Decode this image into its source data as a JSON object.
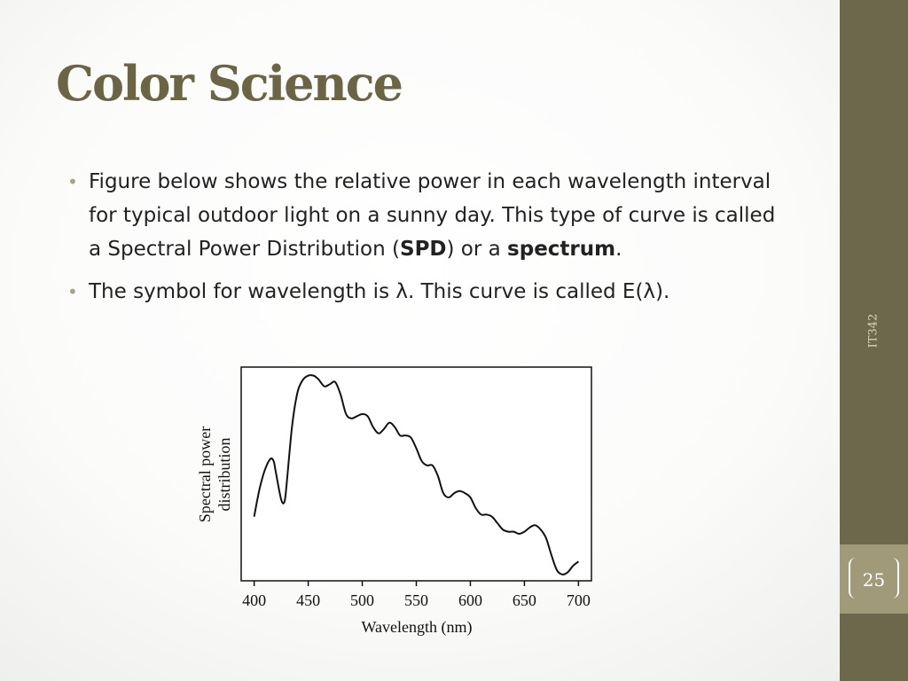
{
  "slide": {
    "title": "Color Science",
    "bullets": [
      {
        "t1": "Figure below shows the relative power in each wavelength interval for typical outdoor light on a sunny day. This type of curve is called a Spectral Power Distribution (",
        "b1": "SPD",
        "t2": ") or a ",
        "b2": "spectrum",
        "t3": "."
      },
      {
        "t1": "The symbol for wavelength is λ. This curve is called E(λ)."
      }
    ],
    "course": "IT342",
    "page_number": "25",
    "colors": {
      "title": "#6b6546",
      "sidebar": "#6d674c",
      "page_box": "#a09a79",
      "bullet": "#a8a386"
    }
  },
  "chart_data": {
    "type": "line",
    "xlabel": "Wavelength (nm)",
    "ylabel": "Spectral power distribution",
    "ylabel_lines": [
      "Spectral power",
      "distribution"
    ],
    "xlim": [
      388,
      712
    ],
    "ylim": [
      0,
      1.0
    ],
    "x_ticks": [
      400,
      450,
      500,
      550,
      600,
      650,
      700
    ],
    "grid": false,
    "series": [
      {
        "x": [
          400,
          405,
          410,
          415,
          418,
          420,
          425,
          428,
          430,
          435,
          440,
          445,
          450,
          455,
          458,
          460,
          465,
          470,
          475,
          480,
          485,
          490,
          495,
          500,
          505,
          510,
          515,
          520,
          525,
          530,
          535,
          540,
          545,
          550,
          555,
          560,
          565,
          570,
          575,
          580,
          585,
          590,
          595,
          600,
          605,
          610,
          615,
          620,
          625,
          630,
          635,
          640,
          645,
          650,
          655,
          660,
          665,
          670,
          675,
          680,
          685,
          690,
          695,
          700
        ],
        "y": [
          0.3,
          0.43,
          0.52,
          0.57,
          0.56,
          0.51,
          0.38,
          0.37,
          0.45,
          0.72,
          0.88,
          0.94,
          0.96,
          0.96,
          0.95,
          0.94,
          0.91,
          0.92,
          0.93,
          0.87,
          0.78,
          0.76,
          0.77,
          0.78,
          0.77,
          0.72,
          0.69,
          0.71,
          0.74,
          0.72,
          0.68,
          0.68,
          0.67,
          0.62,
          0.56,
          0.54,
          0.54,
          0.49,
          0.41,
          0.39,
          0.41,
          0.42,
          0.41,
          0.39,
          0.34,
          0.31,
          0.31,
          0.3,
          0.27,
          0.24,
          0.23,
          0.23,
          0.22,
          0.23,
          0.25,
          0.26,
          0.24,
          0.2,
          0.12,
          0.05,
          0.03,
          0.04,
          0.07,
          0.09
        ]
      }
    ]
  }
}
